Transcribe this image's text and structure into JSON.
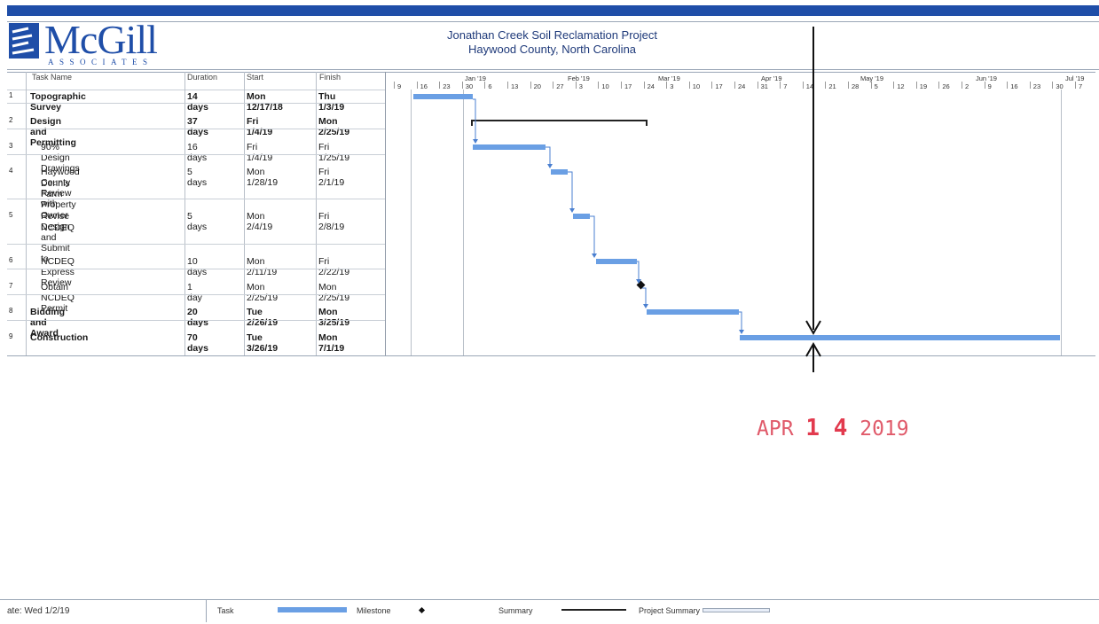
{
  "header": {
    "logo_main": "McGill",
    "logo_sub": "ASSOCIATES",
    "title_line1": "Jonathan Creek Soil Reclamation Project",
    "title_line2": "Haywood County, North Carolina"
  },
  "columns": {
    "task_name": "Task Name",
    "duration": "Duration",
    "start": "Start",
    "finish": "Finish"
  },
  "tasks": [
    {
      "id": "1",
      "name": "Topographic Survey",
      "duration": "14 days",
      "start": "Mon 12/17/18",
      "finish": "Thu 1/3/19",
      "bold": true
    },
    {
      "id": "2",
      "name": "Design and Permitting",
      "duration": "37 days",
      "start": "Fri 1/4/19",
      "finish": "Mon 2/25/19",
      "bold": true
    },
    {
      "id": "3",
      "name": "90% Design Drawings",
      "duration": "16 days",
      "start": "Fri 1/4/19",
      "finish": "Fri 1/25/19",
      "bold": false
    },
    {
      "id": "4",
      "name": "Haywood County Review with",
      "name2": "Dennis Farm Property Owner",
      "duration": "5 days",
      "start": "Mon 1/28/19",
      "finish": "Fri 2/1/19",
      "bold": false
    },
    {
      "id": "5",
      "name": "Revise Design and Submit to",
      "name2": "NCDEQ",
      "duration": "5 days",
      "start": "Mon 2/4/19",
      "finish": "Fri 2/8/19",
      "bold": false
    },
    {
      "id": "6",
      "name": "NCDEQ Express Review",
      "duration": "10 days",
      "start": "Mon 2/11/19",
      "finish": "Fri 2/22/19",
      "bold": false
    },
    {
      "id": "7",
      "name": "Obtain NCDEQ Permit",
      "duration": "1 day",
      "start": "Mon 2/25/19",
      "finish": "Mon 2/25/19",
      "bold": false
    },
    {
      "id": "8",
      "name": "Bidding and Award",
      "duration": "20 days",
      "start": "Tue 2/26/19",
      "finish": "Mon 3/25/19",
      "bold": true
    },
    {
      "id": "9",
      "name": "Construction",
      "duration": "70 days",
      "start": "Tue 3/26/19",
      "finish": "Mon 7/1/19",
      "bold": true
    }
  ],
  "timeline": {
    "months": [
      "Jan '19",
      "Feb '19",
      "Mar '19",
      "Apr '19",
      "May '19",
      "Jun '19",
      "Jul '19"
    ],
    "days": [
      "9",
      "16",
      "23",
      "30",
      "6",
      "13",
      "20",
      "27",
      "3",
      "10",
      "17",
      "24",
      "3",
      "10",
      "17",
      "24",
      "31",
      "7",
      "14",
      "21",
      "28",
      "5",
      "12",
      "19",
      "26",
      "2",
      "9",
      "16",
      "23",
      "30",
      "7"
    ]
  },
  "stamp": {
    "month": "APR",
    "day": "1 4",
    "year": "2019"
  },
  "legend": {
    "date": "ate: Wed 1/2/19",
    "task": "Task",
    "milestone": "Milestone",
    "summary": "Summary",
    "project_summary": "Project Summary"
  },
  "colors": {
    "task_bar": "#6a9fe4",
    "brand": "#1f4ea8",
    "stamp": "#e23a4e"
  }
}
